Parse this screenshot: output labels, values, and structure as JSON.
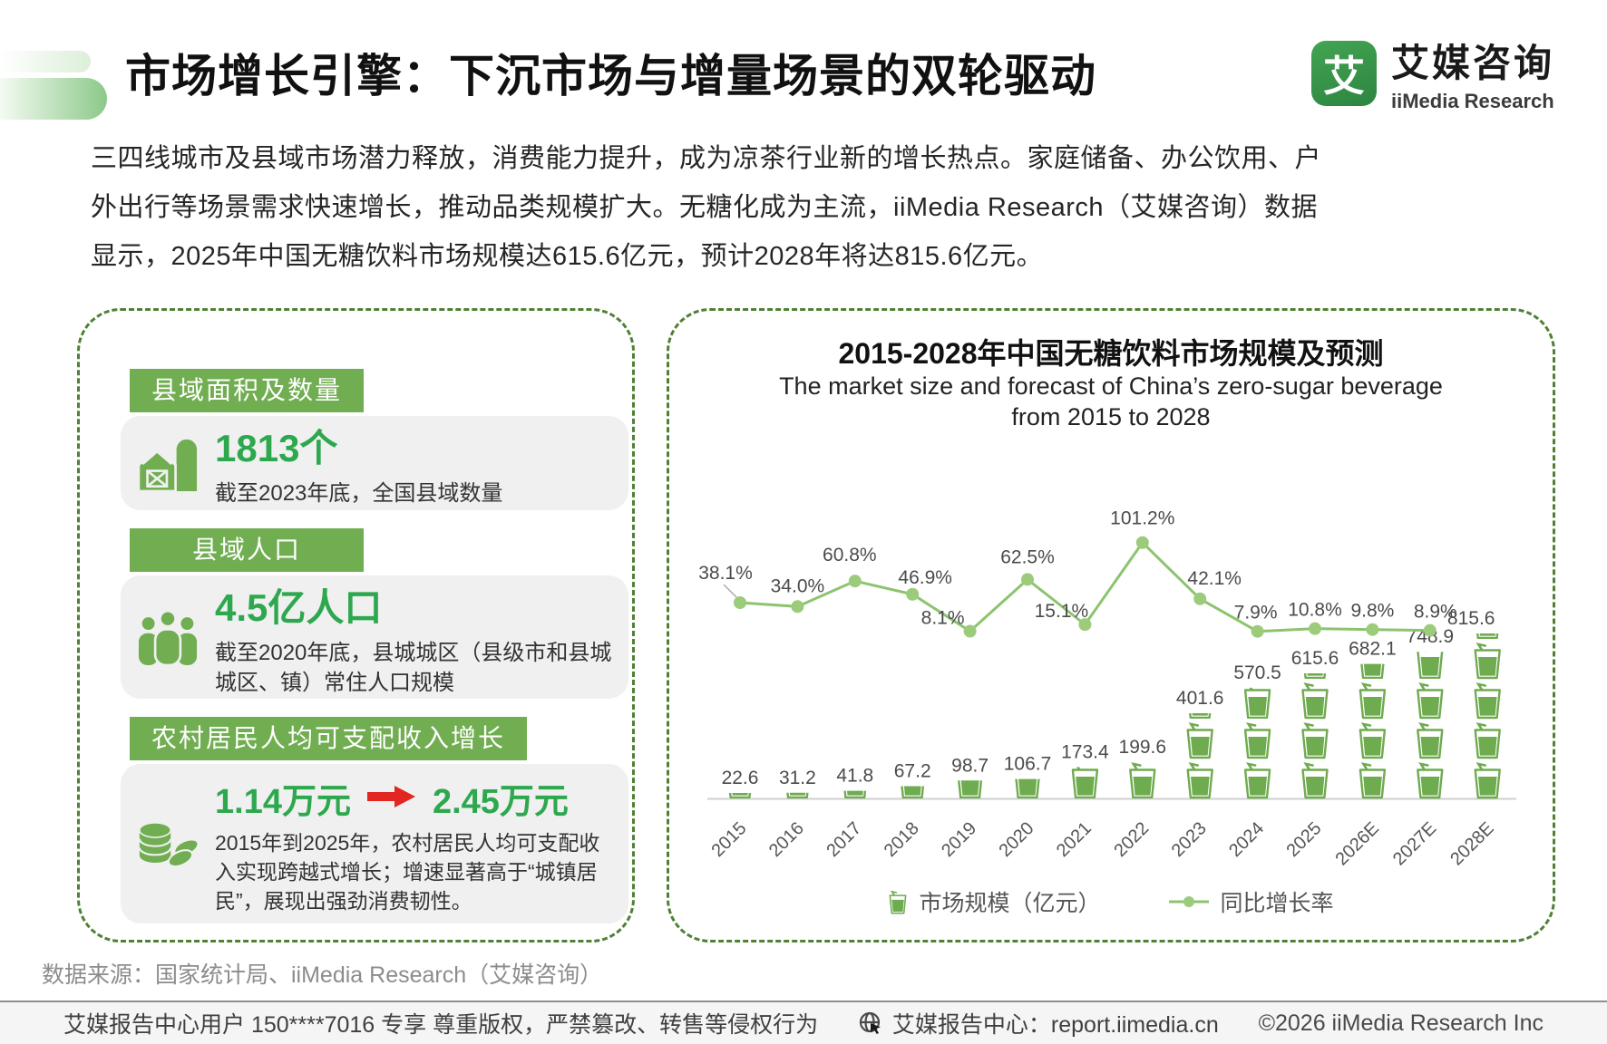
{
  "header": {
    "title": "市场增长引擎：下沉市场与增量场景的双轮驱动",
    "logo_glyph": "艾",
    "logo_cn": "艾媒咨询",
    "logo_en": "iiMedia Research"
  },
  "intro": "三四线城市及县域市场潜力释放，消费能力提升，成为凉茶行业新的增长热点。家庭储备、办公饮用、户\n外出行等场景需求快速增长，推动品类规模扩大。无糖化成为主流，iiMedia Research（艾媒咨询）数据\n显示，2025年中国无糖饮料市场规模达615.6亿元，预计2028年将达815.6亿元。",
  "left_panel": {
    "sections": [
      {
        "label": "县域面积及数量",
        "icon": "barn-icon",
        "value": "1813个",
        "desc": "截至2023年底，全国县域数量"
      },
      {
        "label": "县域人口",
        "icon": "people-icon",
        "value": "4.5亿人口",
        "desc": "截至2020年底，县城城区（县级市和县城城区、镇）常住人口规模"
      },
      {
        "label": "农村居民人均可支配收入增长",
        "icon": "coins-icon",
        "value_from": "1.14万元",
        "value_to": "2.45万元",
        "desc": "2015年到2025年，农村居民人均可支配收入实现跨越式增长；增速显著高于“城镇居民”，展现出强劲消费韧性。"
      }
    ]
  },
  "chart_data": {
    "type": "bar+line",
    "title": "2015-2028年中国无糖饮料市场规模及预测",
    "subtitle": "The market size and forecast of China’s zero-sugar beverage\nfrom 2015 to 2028",
    "categories": [
      "2015",
      "2016",
      "2017",
      "2018",
      "2019",
      "2020",
      "2021",
      "2022",
      "2023",
      "2024",
      "2025",
      "2026E",
      "2027E",
      "2028E"
    ],
    "series": [
      {
        "name": "市场规模（亿元）",
        "type": "pictogram-bar",
        "icon": "cup-icon",
        "unit_per_icon": 200,
        "values": [
          22.6,
          31.2,
          41.8,
          67.2,
          98.7,
          106.7,
          173.4,
          199.6,
          401.6,
          570.5,
          615.6,
          682.1,
          748.9,
          815.6
        ]
      },
      {
        "name": "同比增长率",
        "type": "line",
        "unit": "%",
        "values": [
          38.1,
          34.0,
          60.8,
          46.9,
          8.1,
          62.5,
          15.1,
          101.2,
          42.1,
          7.9,
          10.8,
          9.8,
          8.9
        ]
      }
    ],
    "legend_position": "bottom",
    "grid": false,
    "colors": {
      "bar": "#6fab4f",
      "line": "#8cc46e",
      "dot": "#9ccb7b",
      "value_label": "#4b4b4b",
      "axis": "#cfcfcf",
      "accent_green": "#2ea84e"
    }
  },
  "source_line": "数据来源：国家统计局、iiMedia Research（艾媒咨询）",
  "footer": {
    "left": "艾媒报告中心用户 150****7016 专享 尊重版权，严禁篡改、转售等侵权行为",
    "center": "艾媒报告中心：report.iimedia.cn",
    "right": "©2026  iiMedia Research  Inc"
  }
}
